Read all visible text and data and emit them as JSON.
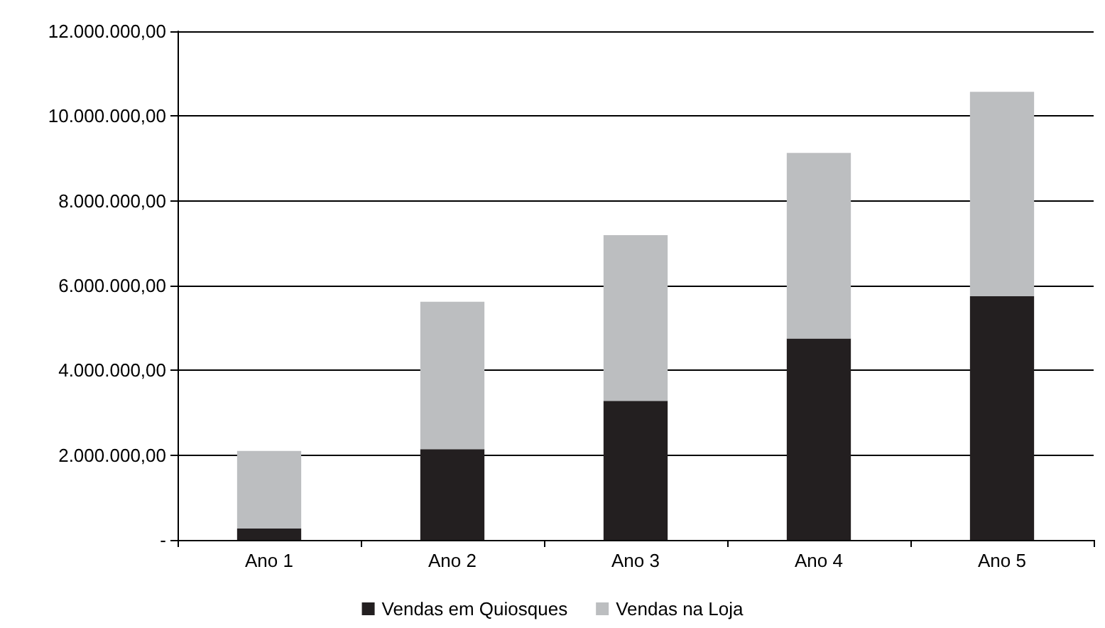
{
  "chart_data": {
    "type": "bar",
    "stacked": true,
    "categories": [
      "Ano 1",
      "Ano 2",
      "Ano 3",
      "Ano 4",
      "Ano 5"
    ],
    "series": [
      {
        "name": "Vendas em Quiosques",
        "color": "#231f20",
        "values": [
          270000,
          2140000,
          3280000,
          4750000,
          5750000
        ]
      },
      {
        "name": "Vendas na Loja",
        "color": "#bcbec0",
        "values": [
          1830000,
          3480000,
          3910000,
          4380000,
          4820000
        ]
      }
    ],
    "ylim": [
      0,
      12000000
    ],
    "yticks": [
      {
        "value": 0,
        "label": "-"
      },
      {
        "value": 2000000,
        "label": "2.000.000,00"
      },
      {
        "value": 4000000,
        "label": "4.000.000,00"
      },
      {
        "value": 6000000,
        "label": "6.000.000,00"
      },
      {
        "value": 8000000,
        "label": "8.000.000,00"
      },
      {
        "value": 10000000,
        "label": "10.000.000,00"
      },
      {
        "value": 12000000,
        "label": "12.000.000,00"
      }
    ],
    "grid": "y",
    "legend": "bottom"
  }
}
